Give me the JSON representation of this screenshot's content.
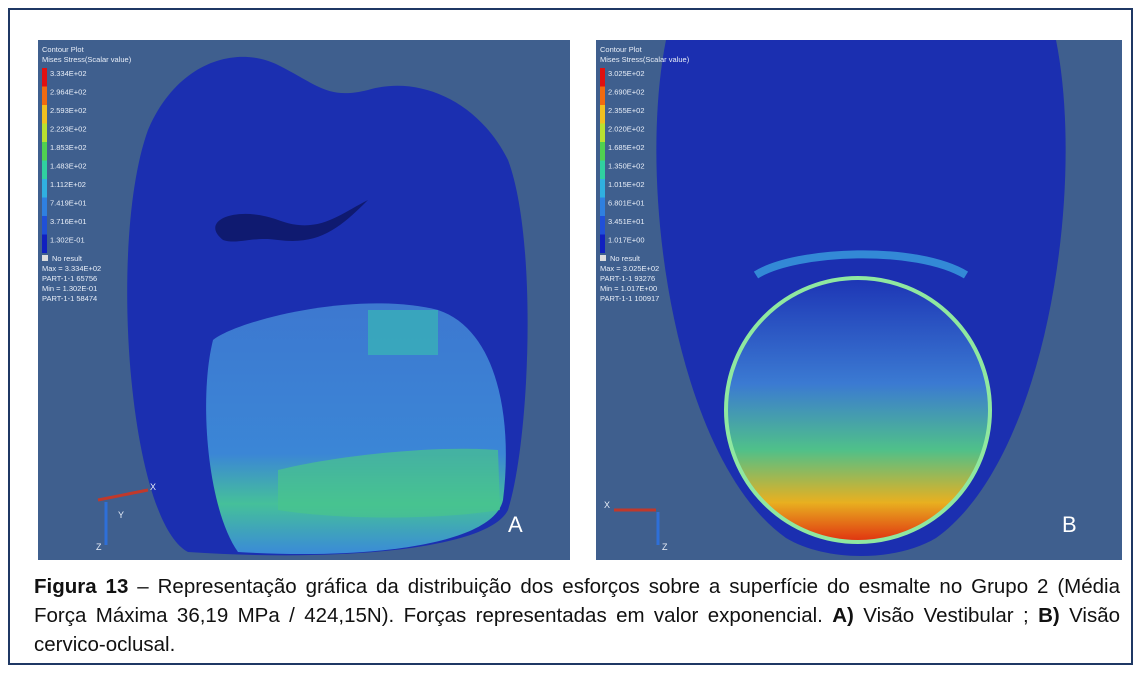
{
  "panels": [
    {
      "label": "A",
      "legend": {
        "title": "Contour Plot",
        "subtitle": "Mises Stress(Scalar value)",
        "levels": [
          "3.334E+02",
          "2.964E+02",
          "2.593E+02",
          "2.223E+02",
          "1.853E+02",
          "1.483E+02",
          "1.112E+02",
          "7.419E+01",
          "3.716E+01",
          "1.302E-01"
        ],
        "no_result": "No result",
        "max": "Max = 3.334E+02",
        "max_node": "PART-1-1 65756",
        "min": "Min = 1.302E-01",
        "min_node": "PART-1-1 58474"
      },
      "axes": [
        "X",
        "Y",
        "Z"
      ]
    },
    {
      "label": "B",
      "legend": {
        "title": "Contour Plot",
        "subtitle": "Mises Stress(Scalar value)",
        "levels": [
          "3.025E+02",
          "2.690E+02",
          "2.355E+02",
          "2.020E+02",
          "1.685E+02",
          "1.350E+02",
          "1.015E+02",
          "6.801E+01",
          "3.451E+01",
          "1.017E+00"
        ],
        "no_result": "No result",
        "max": "Max = 3.025E+02",
        "max_node": "PART-1-1 93276",
        "min": "Min = 1.017E+00",
        "min_node": "PART-1-1 100917"
      },
      "axes": [
        "X",
        "Z"
      ]
    }
  ],
  "caption": {
    "label": "Figura 13",
    "text": "– Representação gráfica da distribuição dos esforços sobre a superfície do esmalte no Grupo 2 (Média Força Máxima 36,19 MPa / 424,15N). Forças representadas em valor exponencial.",
    "a_label": "A)",
    "a_text": "Visão Vestibular ;",
    "b_label": "B)",
    "b_text": "Visão cervico-oclusal."
  }
}
